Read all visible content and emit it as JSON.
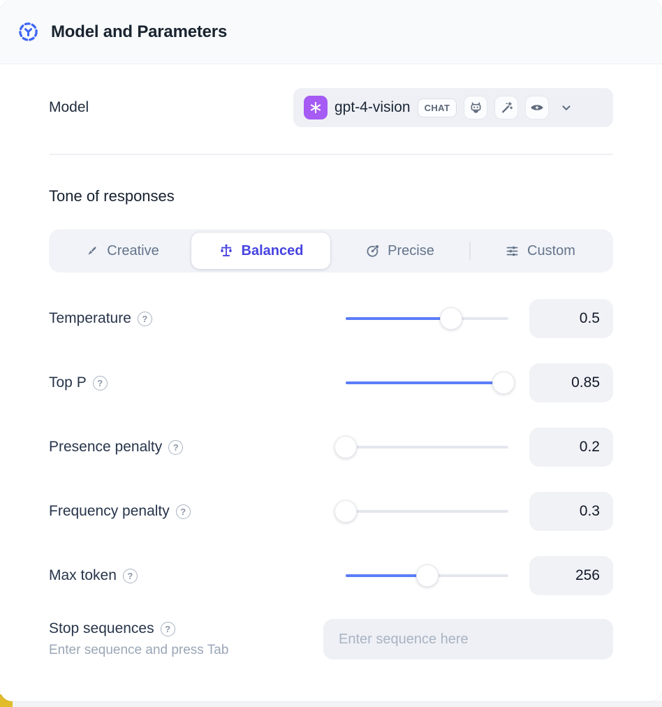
{
  "header": {
    "title": "Model and Parameters",
    "icon": "model-nodes-icon"
  },
  "model_row": {
    "label": "Model",
    "selected_model": {
      "name": "gpt-4-vision",
      "provider_icon": "openai-logo",
      "type_badge": "CHAT",
      "capability_icons": [
        "robot-icon",
        "magic-wand-icon",
        "vision-eye-icon"
      ]
    }
  },
  "tone": {
    "heading": "Tone of responses",
    "options": [
      {
        "label": "Creative",
        "icon": "brush-icon",
        "selected": false
      },
      {
        "label": "Balanced",
        "icon": "balance-scale-icon",
        "selected": true
      },
      {
        "label": "Precise",
        "icon": "target-arrow-icon",
        "selected": false
      },
      {
        "label": "Custom",
        "icon": "sliders-icon",
        "selected": false
      }
    ]
  },
  "parameters": [
    {
      "label": "Temperature",
      "value": "0.5",
      "fill_percent": 65
    },
    {
      "label": "Top P",
      "value": "0.85",
      "fill_percent": 97
    },
    {
      "label": "Presence penalty",
      "value": "0.2",
      "fill_percent": 0
    },
    {
      "label": "Frequency penalty",
      "value": "0.3",
      "fill_percent": 0
    },
    {
      "label": "Max token",
      "value": "256",
      "fill_percent": 50
    }
  ],
  "stop_sequences": {
    "label": "Stop sequences",
    "hint": "Enter sequence and press Tab",
    "placeholder": "Enter sequence here"
  },
  "glyphs": {
    "help": "?"
  },
  "colors": {
    "accent_blue": "#5b7df9",
    "selected_indigo": "#4643df",
    "provider_purple": "#a55bf4",
    "header_bg": "#f8fafc",
    "control_bg": "#eef0f5",
    "corner_yellow": "#e2bc2b"
  }
}
